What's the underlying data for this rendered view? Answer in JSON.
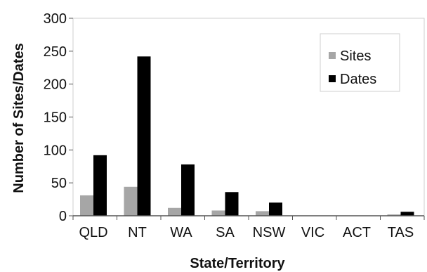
{
  "chart_data": {
    "type": "bar",
    "categories": [
      "QLD",
      "NT",
      "WA",
      "SA",
      "NSW",
      "VIC",
      "ACT",
      "TAS"
    ],
    "series": [
      {
        "name": "Sites",
        "values": [
          31,
          44,
          12,
          8,
          7,
          0,
          0,
          2
        ],
        "color": "#a6a6a6"
      },
      {
        "name": "Dates",
        "values": [
          92,
          242,
          78,
          36,
          20,
          0,
          0,
          6
        ],
        "color": "#000000"
      }
    ],
    "title": "",
    "xlabel": "State/Territory",
    "ylabel": "Number of Sites/Dates",
    "ylim": [
      0,
      300
    ],
    "yticks": [
      0,
      50,
      100,
      150,
      200,
      250,
      300
    ],
    "grid": false,
    "legend_position": "top-right"
  }
}
